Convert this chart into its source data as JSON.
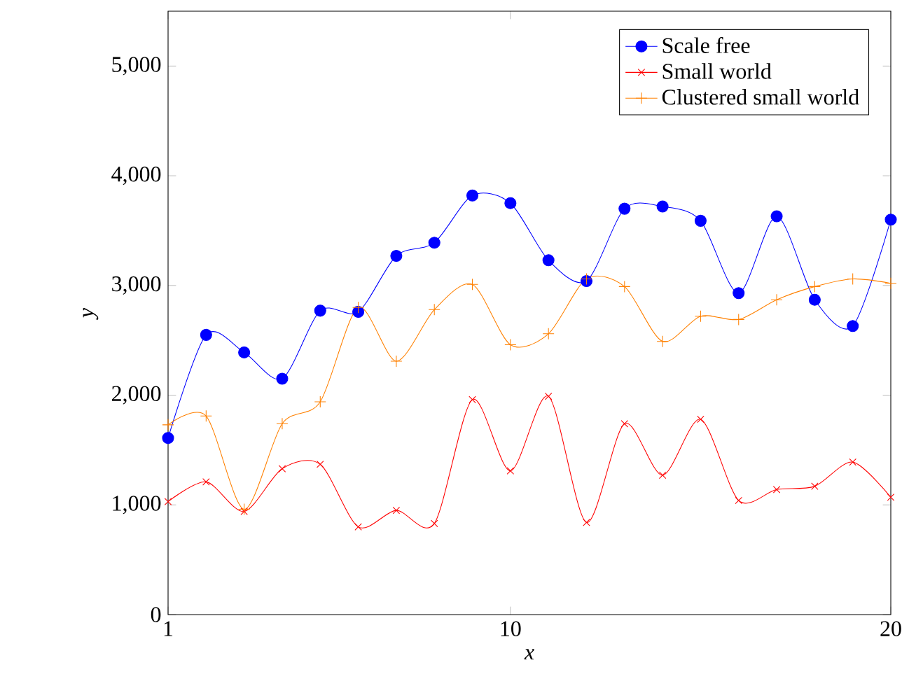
{
  "chart_data": {
    "type": "line",
    "xlabel": "x",
    "ylabel": "y",
    "x": [
      1,
      2,
      3,
      4,
      5,
      6,
      7,
      8,
      9,
      10,
      11,
      12,
      13,
      14,
      15,
      16,
      17,
      18,
      19,
      20
    ],
    "xlim": [
      1,
      20
    ],
    "xticks": [
      1,
      10,
      20
    ],
    "ylim": [
      0,
      5500
    ],
    "yticks": [
      {
        "value": 0,
        "label": "0"
      },
      {
        "value": 1000,
        "label": "1,000"
      },
      {
        "value": 2000,
        "label": "2,000"
      },
      {
        "value": 3000,
        "label": "3,000"
      },
      {
        "value": 4000,
        "label": "4,000"
      },
      {
        "value": 5000,
        "label": "5,000"
      }
    ],
    "legend": "top right",
    "line_style": "solid",
    "series": [
      {
        "name": "Scale free",
        "color": "#0000ff",
        "marker": "circle",
        "values": [
          1610,
          2550,
          2390,
          2150,
          2770,
          2760,
          3270,
          3390,
          3820,
          3750,
          3230,
          3040,
          3700,
          3720,
          3590,
          2930,
          3630,
          2870,
          2630,
          3600
        ]
      },
      {
        "name": "Small world",
        "color": "#ff0000",
        "marker": "cross",
        "values": [
          1030,
          1210,
          940,
          1330,
          1370,
          800,
          950,
          830,
          1960,
          1310,
          1990,
          840,
          1740,
          1270,
          1780,
          1040,
          1140,
          1170,
          1390,
          1070
        ]
      },
      {
        "name": "Clustered small world",
        "color": "#ff8000",
        "marker": "plus",
        "values": [
          1730,
          1810,
          960,
          1740,
          1940,
          2800,
          2310,
          2780,
          3010,
          2460,
          2560,
          3060,
          2990,
          2490,
          2720,
          2690,
          2870,
          2990,
          3060,
          3020
        ]
      }
    ]
  }
}
